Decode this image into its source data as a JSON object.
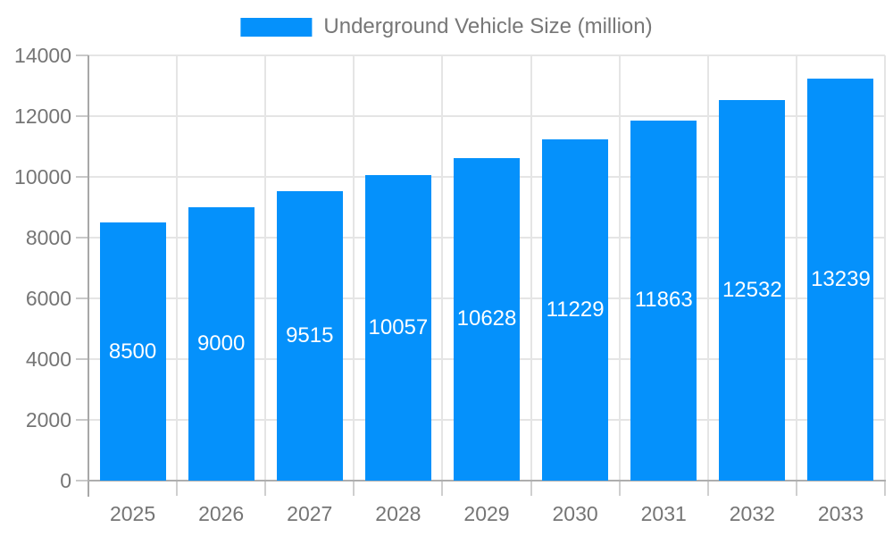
{
  "chart_data": {
    "type": "bar",
    "title": "Underground Vehicle Size (million)",
    "legend": {
      "label": "Underground Vehicle Size (million)",
      "position": "top"
    },
    "categories": [
      "2025",
      "2026",
      "2027",
      "2028",
      "2029",
      "2030",
      "2031",
      "2032",
      "2033"
    ],
    "series": [
      {
        "name": "Underground Vehicle Size (million)",
        "values": [
          8500,
          9000,
          9515,
          10057,
          10628,
          11229,
          11863,
          12532,
          13239
        ]
      }
    ],
    "bar_labels": [
      "8500",
      "9000",
      "9515",
      "10057",
      "10628",
      "11229",
      "11863",
      "12532",
      "13239"
    ],
    "xlabel": "",
    "ylabel": "",
    "ylim": [
      0,
      14000
    ],
    "yticks": [
      0,
      2000,
      4000,
      6000,
      8000,
      10000,
      12000,
      14000
    ],
    "grid": true,
    "colors": {
      "bar": "#0591fb",
      "bar_label_text": "#ffffff",
      "axis_text": "#757575",
      "gridline": "#e5e5e5",
      "axis_line": "#a8a8a8",
      "legend_text": "#777777",
      "background": "#ffffff"
    }
  }
}
